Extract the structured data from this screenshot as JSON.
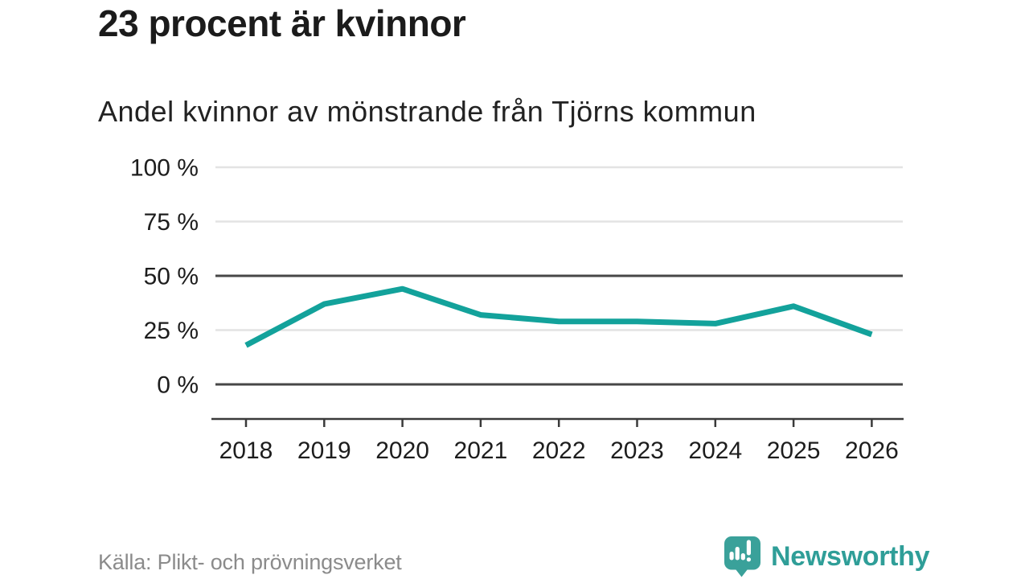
{
  "header": {
    "title": "23 procent är kvinnor",
    "subtitle": "Andel kvinnor av mönstrande från Tjörns kommun"
  },
  "footer": {
    "source": "Källa: Plikt- och prövningsverket",
    "brand": {
      "name": "Newsworthy",
      "icon": "newsworthy-speech-bubble-barchart-icon"
    }
  },
  "colors": {
    "line": "#13a29b",
    "grid_light": "#e3e3e3",
    "grid_dark": "#474747",
    "axis": "#3a3a3a",
    "tick_text": "#1d1d1d",
    "muted_text": "#8b8b8b",
    "brand_teal": "#3aa19a"
  },
  "chart_data": {
    "type": "line",
    "title": "Andel kvinnor av mönstrande från Tjörns kommun",
    "x": [
      2018,
      2019,
      2020,
      2021,
      2022,
      2023,
      2024,
      2025,
      2026
    ],
    "series": [
      {
        "name": "Andel kvinnor",
        "values": [
          18,
          37,
          44,
          32,
          29,
          29,
          28,
          36,
          23
        ]
      }
    ],
    "unit": "%",
    "ylim": [
      0,
      100
    ],
    "yticks": [
      0,
      25,
      50,
      75,
      100
    ],
    "ytick_suffix": " %",
    "emphasized_gridlines": [
      0,
      50
    ],
    "grid": "horizontal",
    "legend": "none"
  }
}
